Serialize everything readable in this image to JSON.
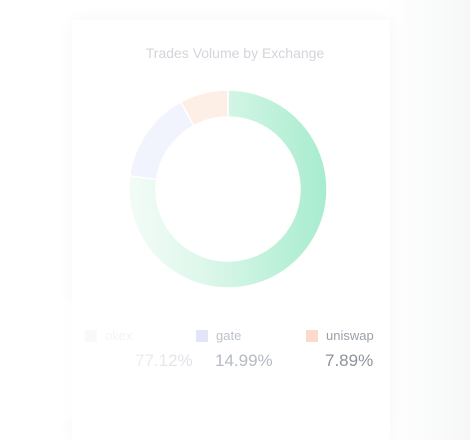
{
  "chart_data": {
    "type": "pie",
    "title": "Trades Volume by Exchange",
    "categories": [
      "okex",
      "gate",
      "uniswap"
    ],
    "values": [
      77.12,
      14.99,
      7.89
    ],
    "value_labels": [
      "77.12%",
      "14.99%",
      "7.89%"
    ],
    "colors": [
      "#9fe9c6",
      "#e6e9fb",
      "#fde1d6"
    ]
  },
  "legend": [
    {
      "name": "okex",
      "percent": "77.12%"
    },
    {
      "name": "gate",
      "percent": "14.99%"
    },
    {
      "name": "uniswap",
      "percent": "7.89%"
    }
  ]
}
